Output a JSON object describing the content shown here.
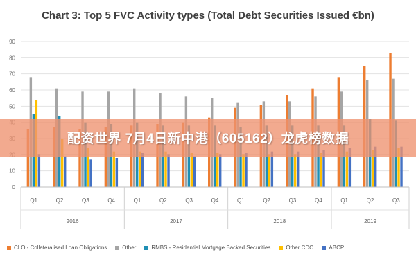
{
  "chart_data": {
    "type": "bar",
    "title": "Chart 3: Top 5 FVC Activity types (Total Debt Securities Issued €bn)",
    "ylim": [
      0,
      90
    ],
    "yticks": [
      0,
      10,
      20,
      30,
      40,
      50,
      60,
      70,
      80,
      90
    ],
    "grid": true,
    "legend_position": "bottom",
    "categories": [
      "Q1",
      "Q2",
      "Q3",
      "Q4",
      "Q1",
      "Q2",
      "Q3",
      "Q4",
      "Q1",
      "Q2",
      "Q3",
      "Q4",
      "Q1",
      "Q2",
      "Q3"
    ],
    "groups": [
      {
        "label": "2016",
        "count": 4
      },
      {
        "label": "2017",
        "count": 4
      },
      {
        "label": "2018",
        "count": 4
      },
      {
        "label": "2019",
        "count": 3
      }
    ],
    "series": [
      {
        "name": "CLO - Collateralised Loan Obligations",
        "color": "#ed7d31",
        "values": [
          36,
          37,
          36,
          37,
          38,
          39,
          40,
          43,
          49,
          51,
          57,
          61,
          68,
          75,
          83
        ]
      },
      {
        "name": "Other",
        "color": "#a5a5a5",
        "values": [
          68,
          61,
          59,
          59,
          61,
          58,
          56,
          55,
          52,
          53,
          53,
          56,
          59,
          66,
          67
        ]
      },
      {
        "name": "RMBS - Residential Mortgage Backed Securities",
        "color": "#1f8fb4",
        "values": [
          45,
          44,
          40,
          39,
          40,
          38,
          38,
          38,
          37,
          38,
          38,
          38,
          38,
          42,
          41
        ]
      },
      {
        "name": "Other CDO",
        "color": "#ffc000",
        "values": [
          54,
          30,
          24,
          22,
          22,
          22,
          21,
          21,
          20,
          20,
          20,
          21,
          22,
          23,
          24
        ]
      },
      {
        "name": "ABCP",
        "color": "#4472c4",
        "values": [
          20,
          19,
          17,
          18,
          21,
          20,
          19,
          20,
          21,
          22,
          22,
          23,
          24,
          25,
          25
        ]
      }
    ]
  },
  "banner": {
    "text": "配资世界 7月4日新中港（605162）龙虎榜数据",
    "color": "#ee9270"
  }
}
